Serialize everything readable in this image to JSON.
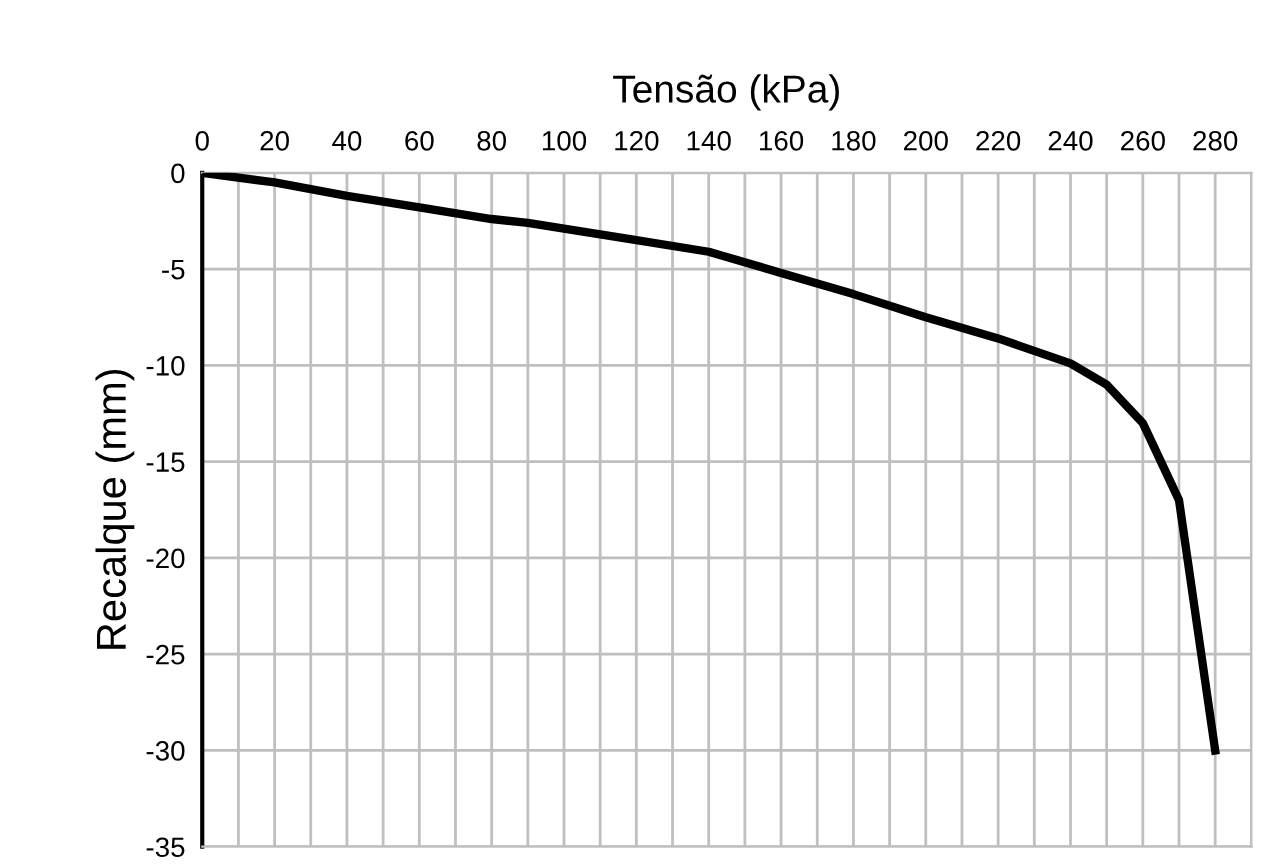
{
  "chart_data": {
    "type": "line",
    "xlabel": "Tensão (kPa)",
    "ylabel": "Recalque (mm)",
    "x": [
      0,
      20,
      40,
      60,
      80,
      90,
      100,
      120,
      140,
      160,
      180,
      200,
      220,
      240,
      250,
      260,
      270,
      280
    ],
    "series": [
      {
        "color": "#000000",
        "values": [
          0,
          -0.5,
          -1.2,
          -1.8,
          -2.4,
          -2.6,
          -2.9,
          -3.5,
          -4.1,
          -5.2,
          -6.3,
          -7.5,
          -8.6,
          -9.9,
          -11,
          -13,
          -17,
          -30
        ]
      }
    ],
    "xlim": [
      0,
      290
    ],
    "ylim": [
      -35,
      0
    ],
    "xticks": [
      0,
      {
        "value": 10,
        "label": null
      },
      20,
      {
        "value": 30,
        "label": null
      },
      40,
      {
        "value": 50,
        "label": null
      },
      60,
      {
        "value": 70,
        "label": null
      },
      80,
      {
        "value": 90,
        "label": null
      },
      100,
      {
        "value": 110,
        "label": null
      },
      120,
      {
        "value": 130,
        "label": null
      },
      140,
      {
        "value": 150,
        "label": null
      },
      160,
      {
        "value": 170,
        "label": null
      },
      180,
      {
        "value": 190,
        "label": null
      },
      200,
      {
        "value": 210,
        "label": null
      },
      220,
      {
        "value": 230,
        "label": null
      },
      240,
      {
        "value": 250,
        "label": null
      },
      260,
      {
        "value": 270,
        "label": null
      },
      280,
      {
        "value": 290,
        "label": null
      }
    ],
    "yticks": [
      0,
      -5,
      -10,
      -15,
      -20,
      -25,
      -30,
      -35
    ],
    "grid": true,
    "marker": "none",
    "line_style": "solid"
  }
}
